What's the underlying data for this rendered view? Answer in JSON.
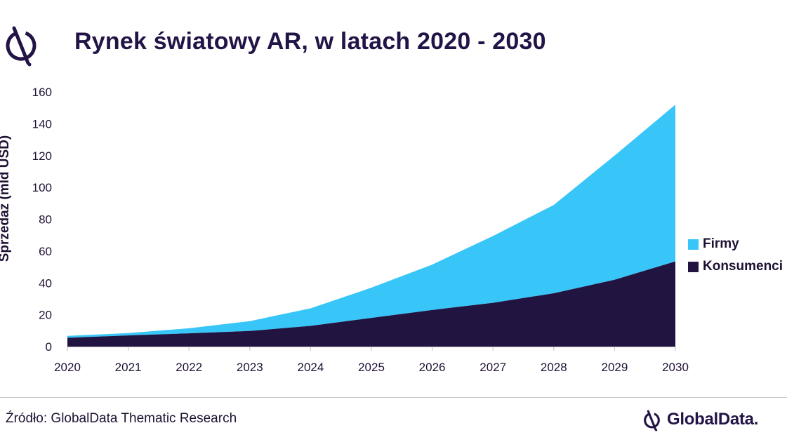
{
  "header": {
    "title": "Rynek światowy AR, w latach 2020 - 2030"
  },
  "footer": {
    "source": "Źródło: GlobalData Thematic Research",
    "brand": "GlobalData."
  },
  "colors": {
    "firmy": "#38c5f8",
    "konsumenci": "#211440",
    "title": "#231447",
    "text": "#1f1133"
  },
  "icons": {
    "top_logo": "globaldata-logo-icon",
    "brand_logo": "globaldata-logo-icon"
  },
  "chart_data": {
    "type": "area",
    "stacked": true,
    "title": "Rynek światowy AR, w latach 2020 - 2030",
    "ylabel": "Sprzedaż (mld USD)",
    "xlabel": "",
    "categories": [
      "2020",
      "2021",
      "2022",
      "2023",
      "2024",
      "2025",
      "2026",
      "2027",
      "2028",
      "2029",
      "2030"
    ],
    "yticks": [
      "0",
      "20",
      "40",
      "60",
      "80",
      "100",
      "120",
      "140",
      "160"
    ],
    "ylim": [
      0,
      160
    ],
    "grid": false,
    "legend_position": "right",
    "series": [
      {
        "name": "Konsumenci",
        "values": [
          5.5,
          7,
          8.3,
          9.8,
          13,
          18,
          23,
          27.5,
          33.5,
          42,
          53.5
        ]
      },
      {
        "name": "Firmy",
        "values": [
          1.2,
          1.5,
          3.2,
          6.2,
          11,
          19,
          28.5,
          42,
          55.5,
          78,
          98.5
        ]
      }
    ]
  }
}
